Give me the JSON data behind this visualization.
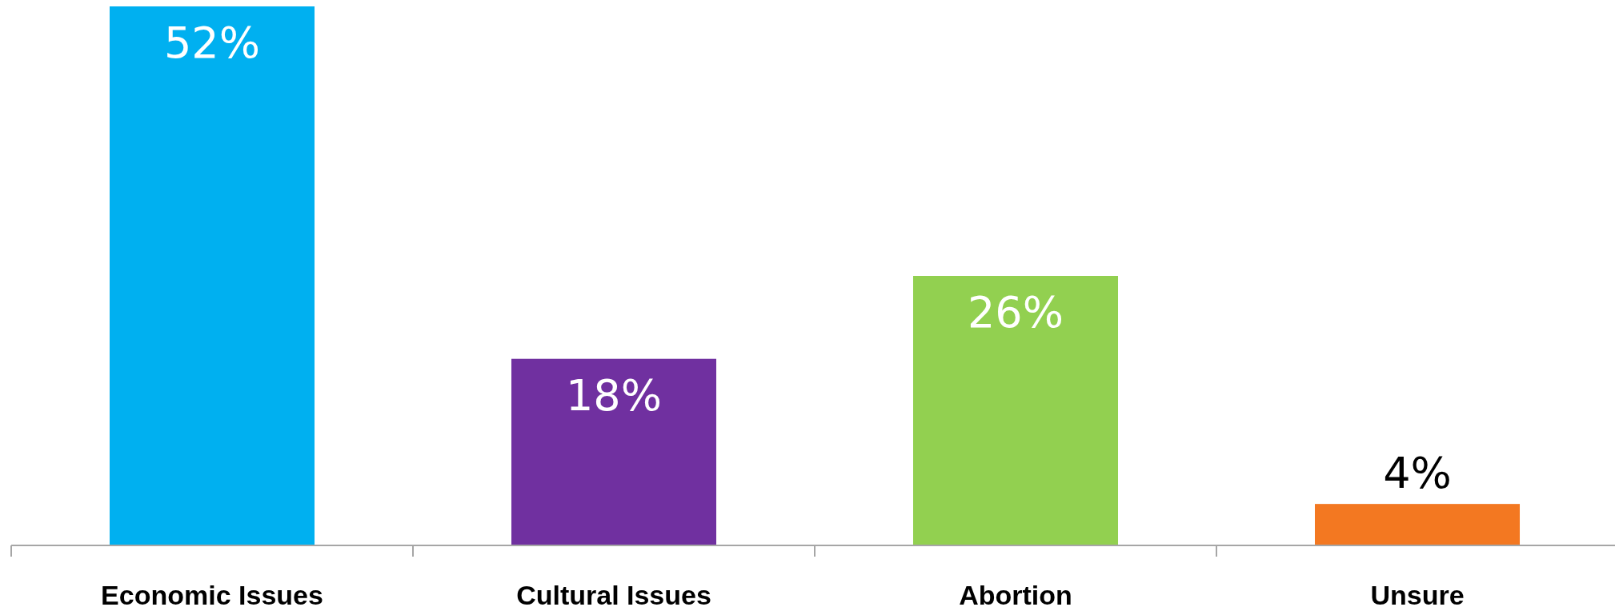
{
  "chart_data": {
    "type": "bar",
    "categories": [
      "Economic Issues",
      "Cultural Issues",
      "Abortion",
      "Unsure"
    ],
    "values": [
      52,
      18,
      26,
      4
    ],
    "colors": [
      "#00b0f0",
      "#7030a0",
      "#92d050",
      "#f37821"
    ],
    "value_labels": [
      "52%",
      "18%",
      "26%",
      "4%"
    ]
  }
}
